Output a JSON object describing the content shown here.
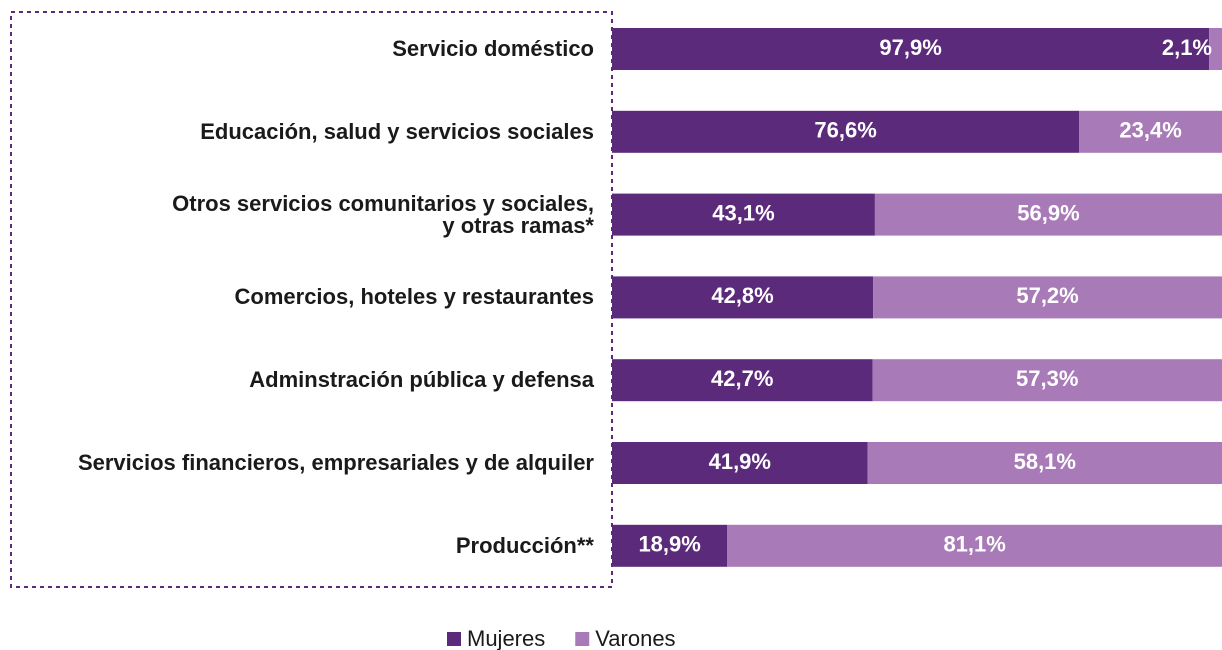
{
  "chart_data": {
    "type": "stacked_barh",
    "categories": [
      "Servicio doméstico",
      "Educación, salud y servicios sociales",
      "Otros servicios comunitarios y sociales,\ny otras ramas*",
      "Comercios, hoteles y restaurantes",
      "Adminstración pública y defensa",
      "Servicios financieros, empresariales y de alquiler",
      "Producción**"
    ],
    "series": [
      {
        "name": "Mujeres",
        "color": "#5b2a7b",
        "values": [
          97.9,
          76.6,
          43.1,
          42.8,
          42.7,
          41.9,
          18.9
        ],
        "value_labels": [
          "97,9%",
          "76,6%",
          "43,1%",
          "42,8%",
          "42,7%",
          "41,9%",
          "18,9%"
        ]
      },
      {
        "name": "Varones",
        "color": "#a87bb8",
        "values": [
          2.1,
          23.4,
          56.9,
          57.2,
          57.3,
          58.1,
          81.1
        ],
        "value_labels": [
          "2,1%",
          "23,4%",
          "56,9%",
          "57,2%",
          "57,3%",
          "58,1%",
          "81,1%"
        ]
      }
    ],
    "legend": "bottom"
  }
}
